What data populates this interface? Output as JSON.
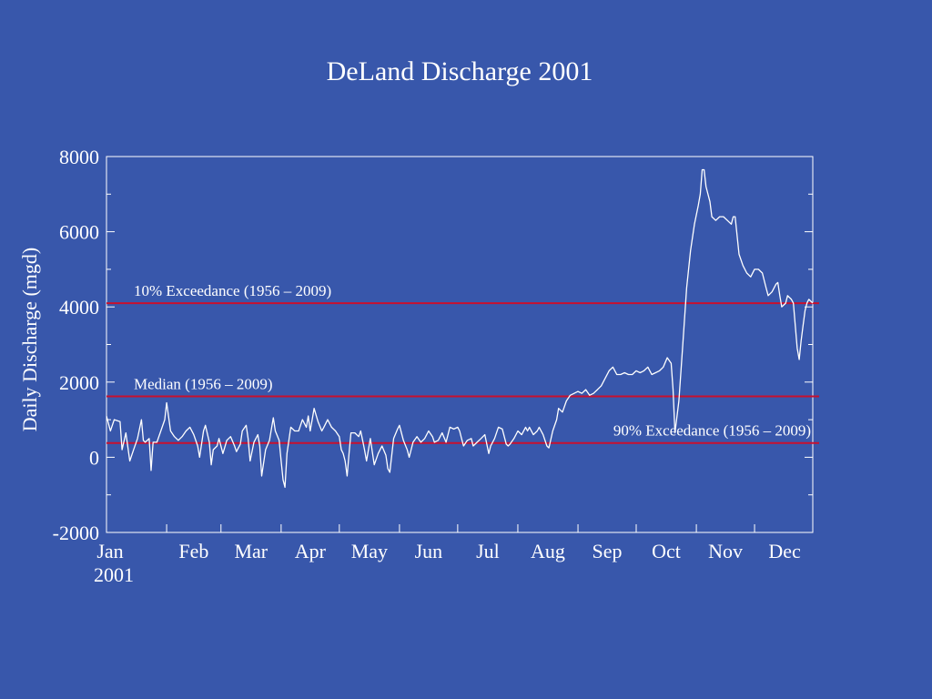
{
  "colors": {
    "background": "#3857ab",
    "foreground": "#ffffff",
    "reference_line": "#c8102e"
  },
  "chart_data": {
    "type": "line",
    "title": "DeLand Discharge 2001",
    "xlabel": "",
    "ylabel": "Daily Discharge (mgd)",
    "ylim": [
      -2000,
      8000
    ],
    "yticks": [
      -2000,
      0,
      2000,
      4000,
      6000,
      8000
    ],
    "ytick_labels": [
      "-2000",
      "0",
      "2000",
      "4000",
      "6000",
      "8000"
    ],
    "xlim": [
      1,
      365
    ],
    "xtick_days": [
      1,
      32,
      60,
      91,
      121,
      152,
      182,
      213,
      244,
      274,
      305,
      335
    ],
    "xtick_labels": [
      "Jan",
      "Feb",
      "Mar",
      "Apr",
      "May",
      "Jun",
      "Jul",
      "Aug",
      "Sep",
      "Oct",
      "Nov",
      "Dec"
    ],
    "year_label": "2001",
    "grid": false,
    "reference_lines": [
      {
        "label": "10% Exceedance (1956 – 2009)",
        "value": 4100
      },
      {
        "label": "Median (1956 – 2009)",
        "value": 1620
      },
      {
        "label": "90% Exceedance (1956 – 2009)",
        "value": 380
      }
    ],
    "series": [
      {
        "x_unit": "day of year",
        "points": [
          [
            1,
            1100
          ],
          [
            3,
            700
          ],
          [
            5,
            1000
          ],
          [
            8,
            950
          ],
          [
            9,
            200
          ],
          [
            11,
            650
          ],
          [
            13,
            -100
          ],
          [
            15,
            200
          ],
          [
            17,
            500
          ],
          [
            19,
            1000
          ],
          [
            20,
            450
          ],
          [
            21,
            400
          ],
          [
            23,
            500
          ],
          [
            24,
            -350
          ],
          [
            25,
            400
          ],
          [
            27,
            400
          ],
          [
            29,
            700
          ],
          [
            31,
            1000
          ],
          [
            32,
            1450
          ],
          [
            34,
            700
          ],
          [
            36,
            550
          ],
          [
            38,
            450
          ],
          [
            40,
            550
          ],
          [
            42,
            700
          ],
          [
            44,
            800
          ],
          [
            46,
            600
          ],
          [
            48,
            300
          ],
          [
            49,
            0
          ],
          [
            51,
            700
          ],
          [
            52,
            850
          ],
          [
            54,
            400
          ],
          [
            55,
            -200
          ],
          [
            56,
            200
          ],
          [
            58,
            300
          ],
          [
            59,
            500
          ],
          [
            61,
            100
          ],
          [
            63,
            450
          ],
          [
            65,
            550
          ],
          [
            67,
            300
          ],
          [
            68,
            150
          ],
          [
            70,
            350
          ],
          [
            71,
            700
          ],
          [
            73,
            850
          ],
          [
            74,
            500
          ],
          [
            75,
            -100
          ],
          [
            77,
            400
          ],
          [
            79,
            600
          ],
          [
            80,
            300
          ],
          [
            81,
            -500
          ],
          [
            83,
            200
          ],
          [
            85,
            450
          ],
          [
            87,
            1050
          ],
          [
            88,
            700
          ],
          [
            90,
            450
          ],
          [
            91,
            -100
          ],
          [
            92,
            -600
          ],
          [
            93,
            -800
          ],
          [
            94,
            100
          ],
          [
            96,
            800
          ],
          [
            98,
            700
          ],
          [
            100,
            700
          ],
          [
            102,
            1000
          ],
          [
            104,
            800
          ],
          [
            105,
            1100
          ],
          [
            106,
            700
          ],
          [
            107,
            1000
          ],
          [
            108,
            1300
          ],
          [
            110,
            950
          ],
          [
            112,
            700
          ],
          [
            113,
            800
          ],
          [
            115,
            1000
          ],
          [
            117,
            800
          ],
          [
            119,
            700
          ],
          [
            121,
            550
          ],
          [
            122,
            200
          ],
          [
            123,
            100
          ],
          [
            124,
            -100
          ],
          [
            125,
            -500
          ],
          [
            126,
            100
          ],
          [
            127,
            650
          ],
          [
            129,
            650
          ],
          [
            131,
            550
          ],
          [
            132,
            700
          ],
          [
            133,
            450
          ],
          [
            134,
            200
          ],
          [
            135,
            -100
          ],
          [
            137,
            500
          ],
          [
            139,
            -200
          ],
          [
            141,
            100
          ],
          [
            143,
            300
          ],
          [
            145,
            50
          ],
          [
            146,
            -300
          ],
          [
            147,
            -400
          ],
          [
            149,
            500
          ],
          [
            151,
            750
          ],
          [
            152,
            850
          ],
          [
            154,
            450
          ],
          [
            156,
            200
          ],
          [
            157,
            0
          ],
          [
            159,
            400
          ],
          [
            161,
            550
          ],
          [
            163,
            400
          ],
          [
            165,
            500
          ],
          [
            167,
            700
          ],
          [
            169,
            550
          ],
          [
            170,
            400
          ],
          [
            172,
            450
          ],
          [
            174,
            650
          ],
          [
            176,
            400
          ],
          [
            178,
            800
          ],
          [
            180,
            750
          ],
          [
            182,
            800
          ],
          [
            183,
            700
          ],
          [
            184,
            500
          ],
          [
            185,
            300
          ],
          [
            187,
            450
          ],
          [
            189,
            500
          ],
          [
            190,
            300
          ],
          [
            192,
            400
          ],
          [
            194,
            500
          ],
          [
            196,
            600
          ],
          [
            198,
            100
          ],
          [
            199,
            300
          ],
          [
            201,
            500
          ],
          [
            203,
            800
          ],
          [
            205,
            750
          ],
          [
            207,
            350
          ],
          [
            208,
            300
          ],
          [
            209,
            350
          ],
          [
            211,
            500
          ],
          [
            213,
            700
          ],
          [
            215,
            600
          ],
          [
            217,
            800
          ],
          [
            218,
            700
          ],
          [
            219,
            800
          ],
          [
            221,
            600
          ],
          [
            223,
            700
          ],
          [
            224,
            800
          ],
          [
            226,
            600
          ],
          [
            228,
            300
          ],
          [
            229,
            250
          ],
          [
            231,
            700
          ],
          [
            233,
            1000
          ],
          [
            234,
            1300
          ],
          [
            236,
            1200
          ],
          [
            238,
            1500
          ],
          [
            240,
            1650
          ],
          [
            242,
            1700
          ],
          [
            244,
            1750
          ],
          [
            246,
            1700
          ],
          [
            248,
            1800
          ],
          [
            250,
            1650
          ],
          [
            252,
            1700
          ],
          [
            254,
            1800
          ],
          [
            256,
            1900
          ],
          [
            258,
            2100
          ],
          [
            260,
            2300
          ],
          [
            262,
            2400
          ],
          [
            264,
            2200
          ],
          [
            266,
            2200
          ],
          [
            268,
            2250
          ],
          [
            270,
            2200
          ],
          [
            272,
            2200
          ],
          [
            274,
            2300
          ],
          [
            276,
            2250
          ],
          [
            278,
            2300
          ],
          [
            280,
            2400
          ],
          [
            282,
            2200
          ],
          [
            284,
            2250
          ],
          [
            286,
            2300
          ],
          [
            288,
            2400
          ],
          [
            290,
            2650
          ],
          [
            292,
            2500
          ],
          [
            293,
            1800
          ],
          [
            294,
            650
          ],
          [
            296,
            1500
          ],
          [
            298,
            3000
          ],
          [
            300,
            4500
          ],
          [
            302,
            5500
          ],
          [
            304,
            6200
          ],
          [
            306,
            6700
          ],
          [
            307,
            7000
          ],
          [
            308,
            7650
          ],
          [
            309,
            7650
          ],
          [
            310,
            7200
          ],
          [
            312,
            6800
          ],
          [
            313,
            6400
          ],
          [
            315,
            6300
          ],
          [
            317,
            6400
          ],
          [
            319,
            6400
          ],
          [
            321,
            6300
          ],
          [
            323,
            6200
          ],
          [
            324,
            6400
          ],
          [
            325,
            6400
          ],
          [
            327,
            5400
          ],
          [
            329,
            5100
          ],
          [
            331,
            4900
          ],
          [
            333,
            4800
          ],
          [
            335,
            5000
          ],
          [
            337,
            5000
          ],
          [
            339,
            4900
          ],
          [
            341,
            4500
          ],
          [
            342,
            4300
          ],
          [
            344,
            4400
          ],
          [
            346,
            4600
          ],
          [
            347,
            4650
          ],
          [
            348,
            4300
          ],
          [
            349,
            4000
          ],
          [
            351,
            4100
          ],
          [
            352,
            4300
          ],
          [
            354,
            4200
          ],
          [
            355,
            4100
          ],
          [
            356,
            3500
          ],
          [
            357,
            2900
          ],
          [
            358,
            2600
          ],
          [
            359,
            3100
          ],
          [
            360,
            3500
          ],
          [
            361,
            3900
          ],
          [
            362,
            4100
          ],
          [
            363,
            4200
          ],
          [
            364,
            4150
          ],
          [
            365,
            4100
          ]
        ]
      }
    ]
  }
}
